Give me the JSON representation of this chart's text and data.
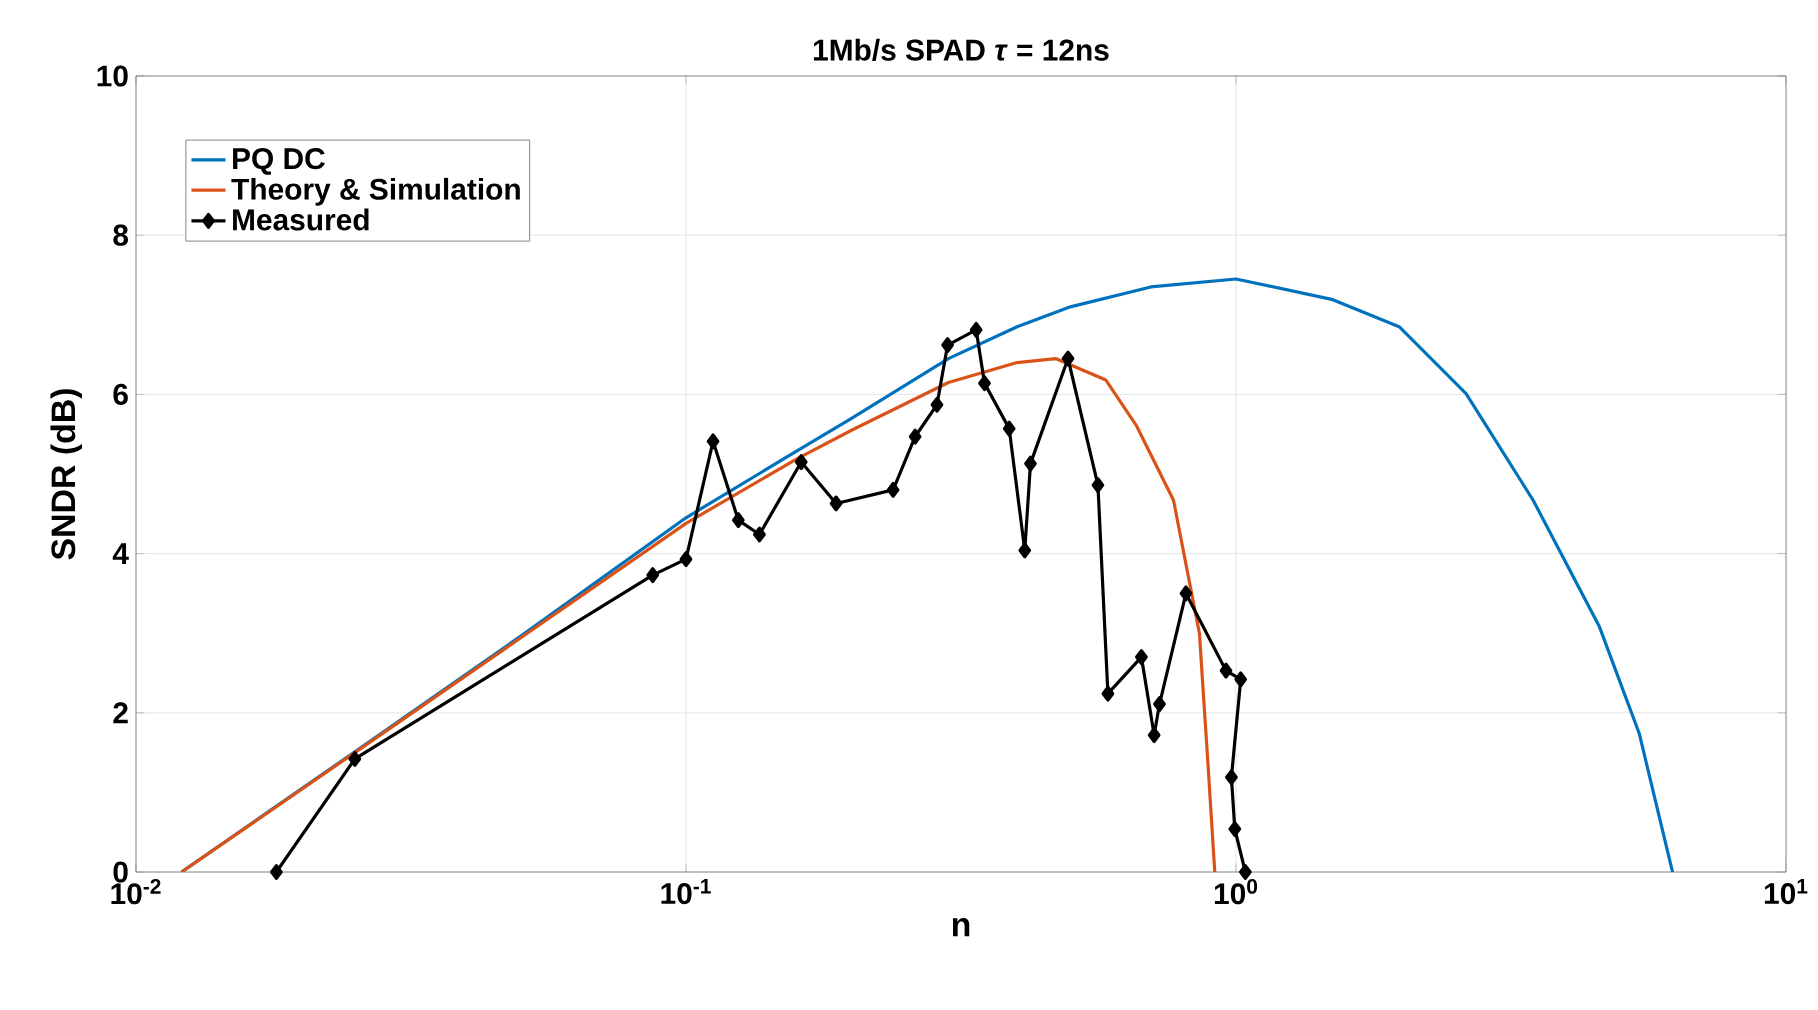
{
  "chart_data": {
    "type": "line",
    "title": "1Mb/s SPAD *τ* = 12ns",
    "xlabel": "n",
    "ylabel": "SNDR (dB)",
    "log": "x",
    "grid": true,
    "legend": "top left",
    "xlim": [
      0.01,
      10
    ],
    "ylim": [
      0,
      10
    ],
    "xticks": [
      {
        "value": 0.01,
        "label": "10$^{-2}$"
      },
      {
        "value": 0.1,
        "label": "10$^{-1}$"
      },
      {
        "value": 1,
        "label": "10$^{0}$"
      },
      {
        "value": 10,
        "label": "10$^{1}$"
      }
    ],
    "yticks": [
      0,
      2,
      4,
      6,
      8,
      10
    ],
    "series": [
      {
        "name": "PQ DC",
        "color": "#0072bd",
        "marker": "none",
        "x": [
          0.0121,
          0.025,
          0.05,
          0.1,
          0.16,
          0.2,
          0.3,
          0.4,
          0.5,
          0.7,
          1.0,
          1.5,
          1.98,
          2.62,
          3.47,
          4.58,
          5.41,
          6.22
        ],
        "values": [
          0,
          1.51,
          2.96,
          4.45,
          5.3,
          5.7,
          6.45,
          6.85,
          7.1,
          7.35,
          7.45,
          7.19,
          6.85,
          6.01,
          4.67,
          3.08,
          1.74,
          0
        ]
      },
      {
        "name": "Theory & Simulation",
        "color": "#d95319",
        "marker": "none",
        "x": [
          0.0121,
          0.025,
          0.05,
          0.1,
          0.16,
          0.2,
          0.3,
          0.4,
          0.47,
          0.58,
          0.66,
          0.77,
          0.858,
          0.89,
          0.915
        ],
        "values": [
          0,
          1.5,
          2.94,
          4.38,
          5.2,
          5.55,
          6.15,
          6.4,
          6.45,
          6.18,
          5.6,
          4.67,
          3.0,
          1.32,
          0
        ]
      },
      {
        "name": "Measured",
        "color": "#000000",
        "marker": "diamond",
        "x": [
          0.018,
          0.025,
          0.087,
          0.1,
          0.112,
          0.1245,
          0.136,
          0.162,
          0.1875,
          0.238,
          0.261,
          0.286,
          0.299,
          0.337,
          0.349,
          0.387,
          0.413,
          0.423,
          0.495,
          0.561,
          0.585,
          0.673,
          0.71,
          0.726,
          0.811,
          0.959,
          1.02,
          0.981,
          0.995,
          1.04
        ],
        "values": [
          0,
          1.42,
          3.73,
          3.93,
          5.41,
          4.42,
          4.24,
          5.15,
          4.63,
          4.8,
          5.47,
          5.87,
          6.62,
          6.81,
          6.14,
          5.57,
          4.04,
          5.13,
          6.45,
          4.86,
          2.24,
          2.7,
          1.72,
          2.11,
          3.5,
          2.53,
          2.42,
          1.19,
          0.54,
          0
        ]
      }
    ]
  }
}
